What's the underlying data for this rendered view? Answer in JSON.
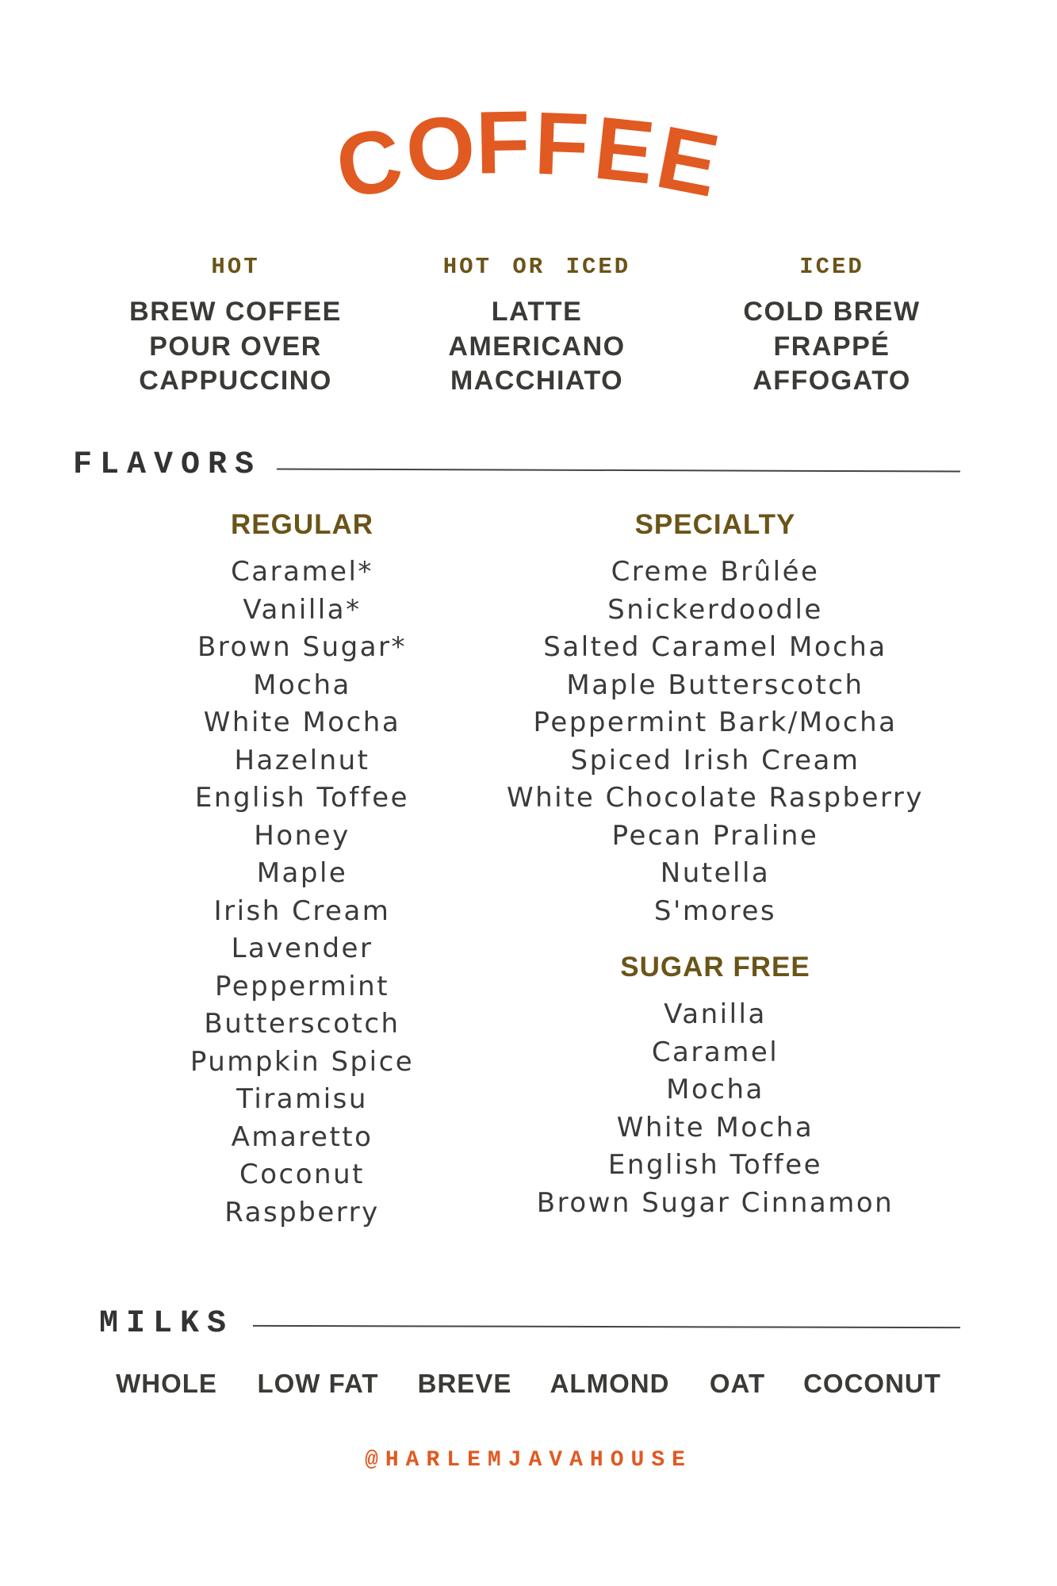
{
  "title": "COFFEE",
  "title_letters": [
    "C",
    "O",
    "F",
    "F",
    "E",
    "E"
  ],
  "colors": {
    "accent": "#e05a22",
    "heading": "#6b5418",
    "text": "#3a3a36"
  },
  "drinks": [
    {
      "heading": "HOT",
      "items": [
        "BREW COFFEE",
        "POUR OVER",
        "CAPPUCCINO"
      ]
    },
    {
      "heading": "HOT OR ICED",
      "items": [
        "LATTE",
        "AMERICANO",
        "MACCHIATO"
      ]
    },
    {
      "heading": "ICED",
      "items": [
        "COLD BREW",
        "FRAPPÉ",
        "AFFOGATO"
      ]
    }
  ],
  "flavors": {
    "label": "FLAVORS",
    "regular": {
      "heading": "REGULAR",
      "items": [
        "Caramel*",
        "Vanilla*",
        "Brown Sugar*",
        "Mocha",
        "White Mocha",
        "Hazelnut",
        "English Toffee",
        "Honey",
        "Maple",
        "Irish Cream",
        "Lavender",
        "Peppermint",
        "Butterscotch",
        "Pumpkin Spice",
        "Tiramisu",
        "Amaretto",
        "Coconut",
        "Raspberry"
      ]
    },
    "specialty": {
      "heading": "SPECIALTY",
      "items": [
        "Creme Brûlée",
        "Snickerdoodle",
        "Salted Caramel Mocha",
        "Maple Butterscotch",
        "Peppermint Bark/Mocha",
        "Spiced Irish Cream",
        "White Chocolate Raspberry",
        "Pecan Praline",
        "Nutella",
        "S'mores"
      ]
    },
    "sugar_free": {
      "heading": "SUGAR FREE",
      "items": [
        "Vanilla",
        "Caramel",
        "Mocha",
        "White Mocha",
        "English Toffee",
        "Brown Sugar Cinnamon"
      ]
    }
  },
  "milks": {
    "label": "MILKS",
    "items": [
      "WHOLE",
      "LOW FAT",
      "BREVE",
      "ALMOND",
      "OAT",
      "COCONUT"
    ]
  },
  "handle": "@HARLEMJAVAHOUSE"
}
